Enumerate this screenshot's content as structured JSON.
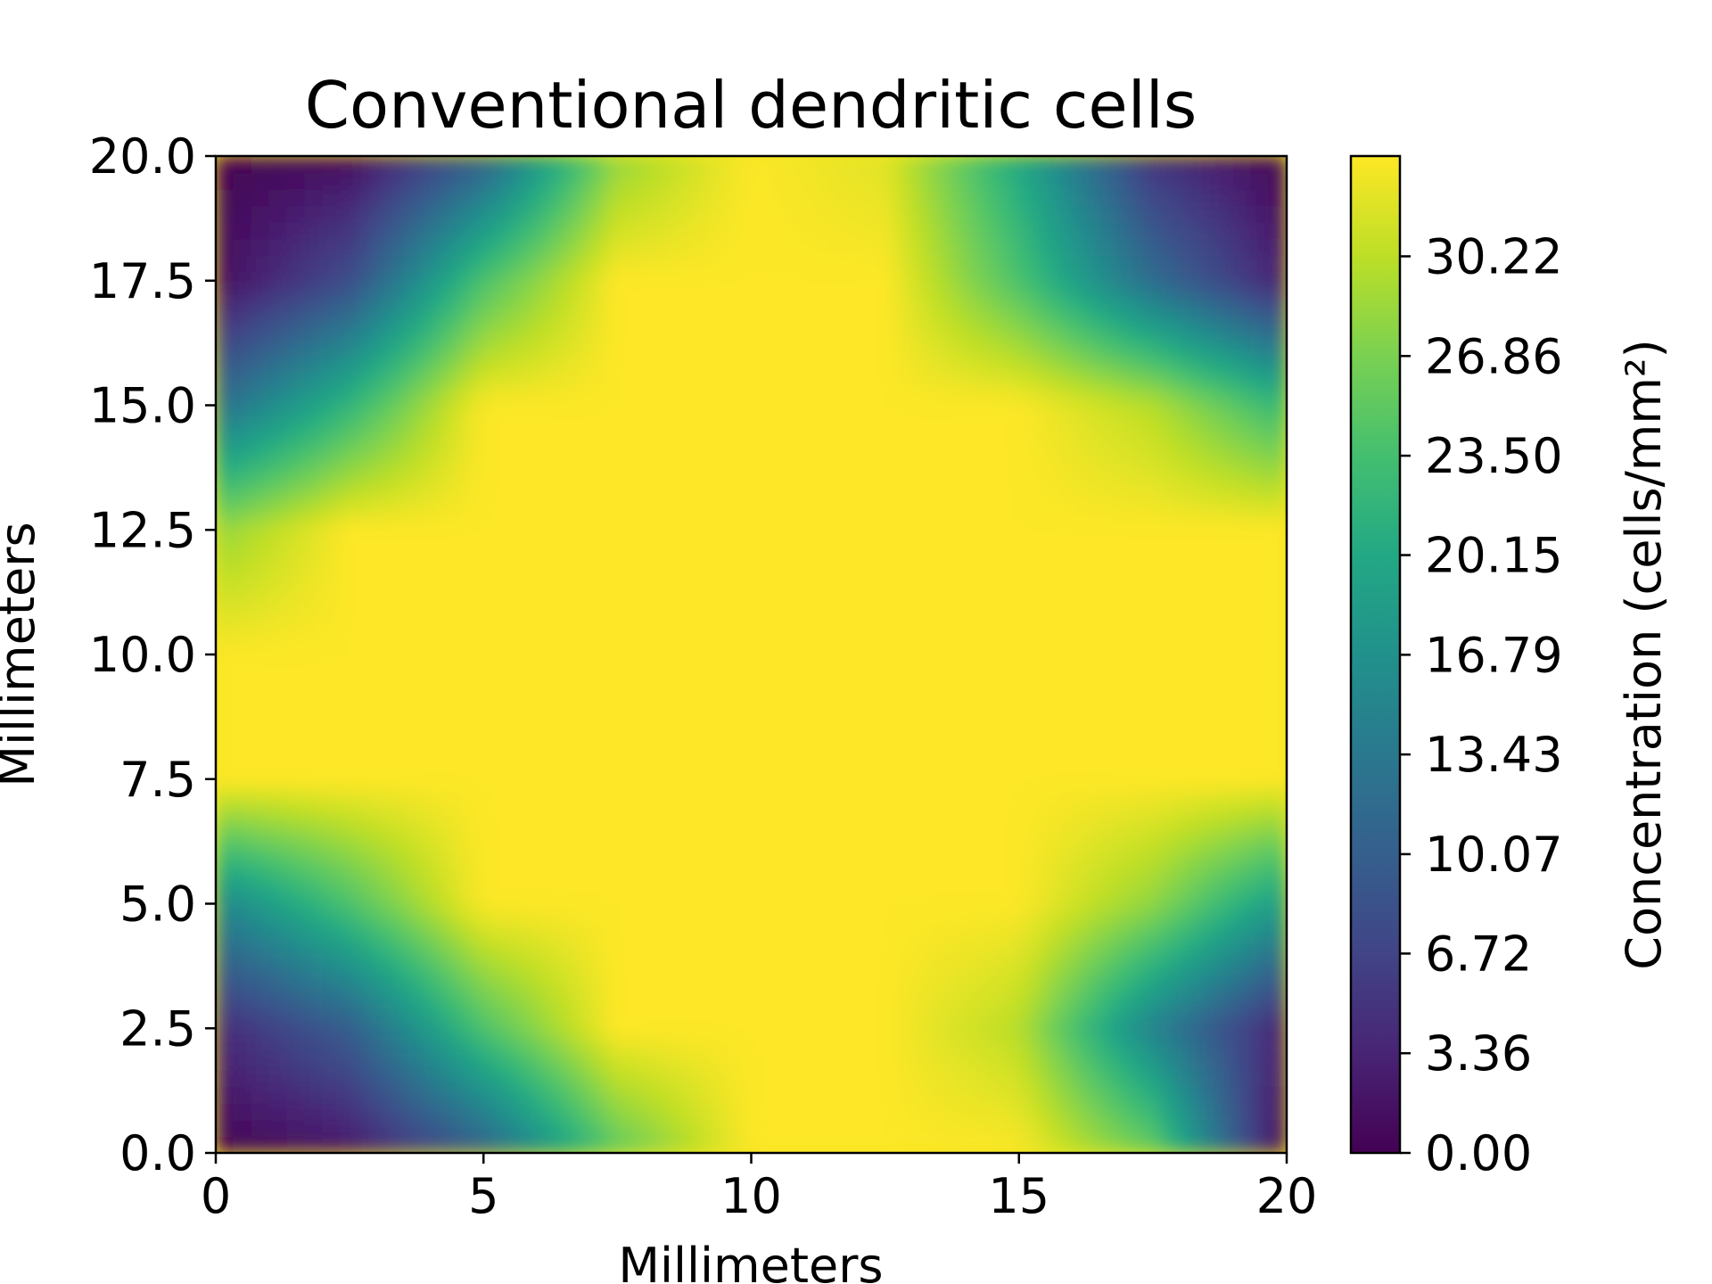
{
  "chart_data": {
    "type": "heatmap",
    "subtype": "filled-contour",
    "title": "Conventional dendritic cells",
    "xlabel": "Millimeters",
    "ylabel": "Millimeters",
    "colorbar_label": "Concentration (cells/mm²)",
    "xlim": [
      0,
      20
    ],
    "ylim": [
      0,
      20
    ],
    "x_ticks": [
      0,
      5,
      10,
      15,
      20
    ],
    "x_tick_labels": [
      "0",
      "5",
      "10",
      "15",
      "20"
    ],
    "y_ticks": [
      0,
      2.5,
      5,
      7.5,
      10,
      12.5,
      15,
      17.5,
      20
    ],
    "y_tick_labels": [
      "0.0",
      "2.5",
      "5.0",
      "7.5",
      "10.0",
      "12.5",
      "15.0",
      "17.5",
      "20.0"
    ],
    "colorbar_range": [
      0,
      33.6
    ],
    "colorbar_ticks": [
      0,
      3.36,
      6.72,
      10.07,
      13.43,
      16.79,
      20.15,
      23.5,
      26.86,
      30.22
    ],
    "colorbar_tick_labels": [
      "0.00",
      "3.36",
      "6.72",
      "10.07",
      "13.43",
      "16.79",
      "20.15",
      "23.50",
      "26.86",
      "30.22"
    ],
    "colormap": "viridis",
    "grid": false,
    "grid_x": [
      0,
      2.5,
      5,
      7.5,
      10,
      12.5,
      15,
      17.5,
      20
    ],
    "grid_y": [
      0,
      2.5,
      5,
      7.5,
      10,
      12.5,
      15,
      17.5,
      20
    ],
    "values": [
      [
        0,
        2,
        10,
        25,
        33.6,
        33.6,
        33.6,
        26,
        0
      ],
      [
        4,
        10,
        24,
        33.6,
        33.6,
        33.6,
        30,
        15,
        3
      ],
      [
        15,
        24,
        33.6,
        33.6,
        33.6,
        33.6,
        33.6,
        28,
        18
      ],
      [
        33.6,
        33.6,
        33.6,
        33.6,
        33.6,
        33.6,
        33.6,
        33.6,
        33.6
      ],
      [
        33.6,
        33.6,
        33.6,
        33.6,
        33.6,
        33.6,
        33.6,
        33.6,
        33.6
      ],
      [
        28,
        33.6,
        33.6,
        33.6,
        33.6,
        33.6,
        33.6,
        33.6,
        33.6
      ],
      [
        12,
        22,
        33.6,
        33.6,
        33.6,
        33.6,
        33.6,
        30,
        22
      ],
      [
        1,
        8,
        24,
        33.6,
        33.6,
        33.6,
        24,
        12,
        3
      ],
      [
        0,
        1,
        10,
        28,
        33.6,
        32,
        20,
        5,
        0
      ]
    ]
  }
}
